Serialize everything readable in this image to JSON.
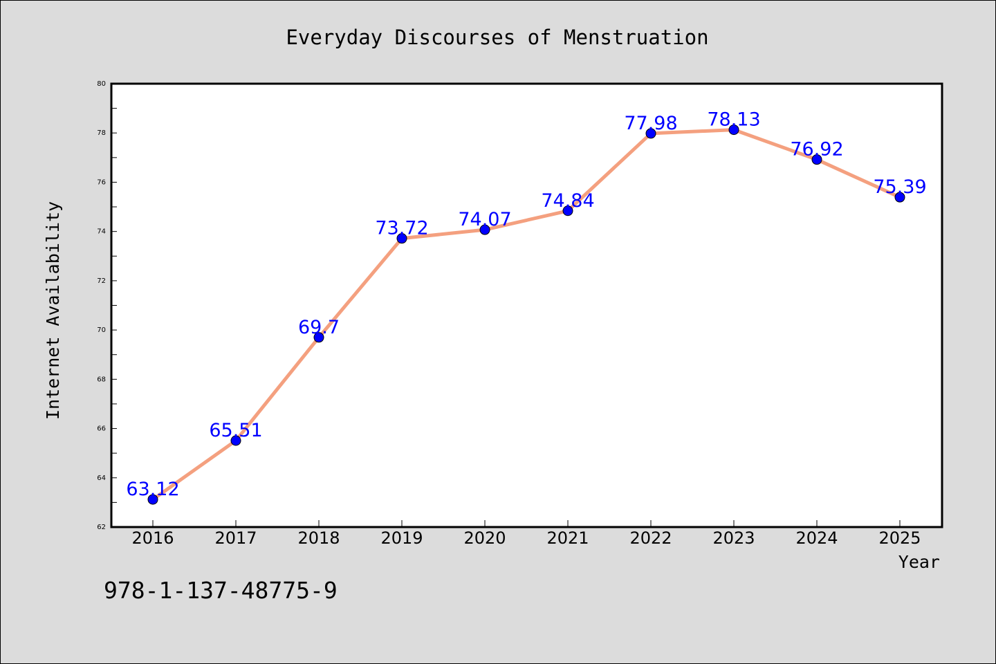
{
  "chart_data": {
    "type": "line",
    "title": "Everyday Discourses of Menstruation",
    "xlabel": "Year",
    "ylabel": "Internet Availability",
    "x": [
      "2016",
      "2017",
      "2018",
      "2019",
      "2020",
      "2021",
      "2022",
      "2023",
      "2024",
      "2025"
    ],
    "values": [
      63.12,
      65.51,
      69.7,
      73.72,
      74.07,
      74.84,
      77.98,
      78.13,
      76.92,
      75.39
    ],
    "data_labels": [
      "63.12",
      "65.51",
      "69.7",
      "73.72",
      "74.07",
      "74.84",
      "77.98",
      "78.13",
      "76.92",
      "75.39"
    ],
    "yticks": [
      62,
      64,
      66,
      68,
      70,
      72,
      74,
      76,
      78,
      80
    ],
    "ylim": [
      62,
      80
    ],
    "grid": false,
    "legend": "none",
    "colors": {
      "line": "#f4a07f",
      "marker": "#0000ff",
      "data_label": "#0000ff",
      "background": "#dcdcdc",
      "plot_background": "#ffffff"
    }
  },
  "annotation": {
    "isbn": "978-1-137-48775-9"
  }
}
